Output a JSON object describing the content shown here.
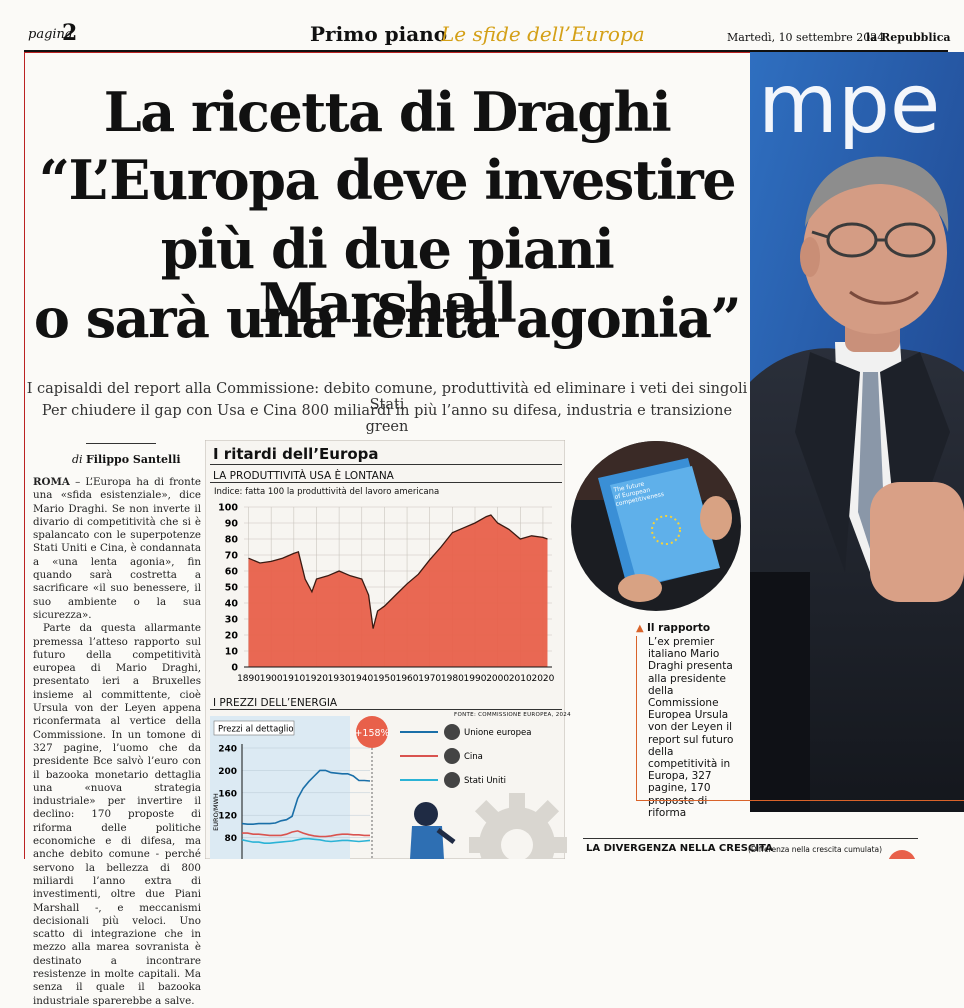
{
  "header": {
    "page_label": "pagina",
    "page_number": "2",
    "section_title": "Primo piano",
    "section_subtitle": "Le sfide dell’Europa",
    "date": "Martedì, 10 settembre 2024",
    "paper": "la Repubblica"
  },
  "article": {
    "headline_lines": [
      "La ricetta di Draghi",
      "“L’Europa deve investire",
      "più di due piani Marshall",
      "o sarà una lenta agonia”"
    ],
    "subheadline_lines": [
      "I capisaldi del report alla Commissione: debito comune, produttività ed eliminare i veti dei singoli Stati",
      "Per chiudere il gap con Usa e Cina 800 miliardi in più l’anno su difesa, industria e transizione green"
    ],
    "byline_prefix": "di",
    "byline_name": "Filippo Santelli",
    "dateline": "ROMA",
    "paragraphs": [
      " – L’Europa ha di fronte una «sfida esistenziale», dice Mario Draghi. Se non inverte il divario di competitività che si è spalancato con le superpotenze Stati Uniti e Cina, è condannata a «una lenta agonia», fin quando sarà costretta a sacrificare «il suo benessere, il suo ambiente o la sua sicurezza».",
      "Parte da questa allarmante premessa l’atteso rapporto sul futuro della competitività europea di Mario Draghi, presentato ieri a Bruxelles insieme al committente, cioè Ursula von der Leyen appena riconfermata al vertice della Commissione. In un tomone di 327 pagine, l’uomo che da presidente Bce salvò l’euro con il bazooka monetario dettaglia una «nuova strategia industriale» per invertire il declino: 170 proposte di riforma delle politiche economiche e di difesa, ma anche debito comune - perché servono la bellezza di 800 miliardi l’anno extra di investimenti, oltre due Piani Marshall -, e meccanismi decisionali più veloci. Uno scatto di integrazione che in mezzo alla marea sovranista è destinato a incontrare resistenze in molte capitali. Ma senza il quale il bazooka industriale sparerebbe a salve."
    ]
  },
  "infographic": {
    "title": "I ritardi dell’Europa",
    "panel1_title": "LA PRODUTTIVITÀ USA È LONTANA",
    "panel1_note": "Indice: fatta 100 la produttività del lavoro americana",
    "panel2_title": "I PREZZI DELL’ENERGIA",
    "panel2_source": "FONTE: COMMISSIONE EUROPEA, 2024",
    "panel2_subtitle": "Prezzi al dettaglio",
    "panel2_ylabel": "EURO/MWH",
    "callout": "+158%",
    "legend": [
      "Unione europea",
      "Cina",
      "Stati Uniti"
    ]
  },
  "chart_data": [
    {
      "type": "area",
      "title": "LA PRODUTTIVITÀ USA È LONTANA",
      "subtitle": "Indice: fatta 100 la produttività del lavoro americana",
      "x": [
        1890,
        1895,
        1900,
        1905,
        1910,
        1912,
        1915,
        1918,
        1920,
        1925,
        1930,
        1935,
        1940,
        1943,
        1945,
        1947,
        1950,
        1955,
        1960,
        1965,
        1970,
        1975,
        1980,
        1985,
        1990,
        1995,
        1997,
        2000,
        2005,
        2010,
        2015,
        2020,
        2022
      ],
      "y": [
        68,
        65,
        66,
        68,
        71,
        72,
        55,
        47,
        55,
        57,
        60,
        57,
        55,
        45,
        24,
        35,
        38,
        45,
        52,
        58,
        67,
        75,
        84,
        87,
        90,
        94,
        95,
        90,
        86,
        80,
        82,
        81,
        80
      ],
      "xlim": [
        1888,
        2024
      ],
      "ylim": [
        0,
        100
      ],
      "xticks": [
        1890,
        1900,
        1910,
        1920,
        1930,
        1940,
        1950,
        1960,
        1970,
        1980,
        1990,
        2000,
        2010,
        2020
      ],
      "yticks": [
        0,
        10,
        20,
        30,
        40,
        50,
        60,
        70,
        80,
        90,
        100
      ],
      "fill_color": "#e8604a",
      "grid": true
    },
    {
      "type": "line",
      "title": "I PREZZI DELL’ENERGIA",
      "subtitle": "Prezzi al dettaglio",
      "ylabel": "EURO/MWH",
      "ylim": [
        40,
        240
      ],
      "yticks": [
        80,
        120,
        160,
        200,
        240
      ],
      "x": [
        1,
        2,
        3,
        4,
        5,
        6,
        7,
        8,
        9,
        10,
        11,
        12,
        13,
        14,
        15,
        16,
        17,
        18,
        19,
        20,
        21,
        22,
        23,
        24
      ],
      "series": [
        {
          "name": "Unione europea",
          "color": "#1a6fa8",
          "values": [
            105,
            104,
            104,
            105,
            105,
            105,
            106,
            110,
            112,
            118,
            150,
            168,
            180,
            190,
            200,
            200,
            196,
            195,
            194,
            194,
            190,
            182,
            182,
            181
          ]
        },
        {
          "name": "Cina",
          "color": "#d9534f",
          "values": [
            88,
            88,
            86,
            86,
            85,
            84,
            84,
            84,
            86,
            90,
            92,
            88,
            85,
            83,
            82,
            82,
            83,
            85,
            86,
            86,
            85,
            85,
            84,
            84
          ]
        },
        {
          "name": "Stati Uniti",
          "color": "#2bb3d6",
          "values": [
            76,
            74,
            72,
            72,
            70,
            70,
            71,
            72,
            73,
            74,
            76,
            78,
            78,
            77,
            76,
            74,
            73,
            74,
            75,
            75,
            74,
            73,
            74,
            75
          ]
        }
      ],
      "annotation": "+158%"
    }
  ],
  "photo_caption": {
    "head": "Il rapporto",
    "text": "L’ex premier italiano Mario Draghi presenta alla presidente della Commissione Europea Ursula von der Leyen il report sul futuro della competitività in Europa, 327 pagine, 170 proposte di riforma"
  },
  "photo": {
    "backdrop_text": "mpe",
    "report_cover_text": [
      "The future",
      "of European",
      "competitiveness"
    ]
  },
  "divergence": {
    "title": "LA DIVERGENZA NELLA CRESCITA",
    "note": "(Differenza nella crescita cumulata)"
  }
}
